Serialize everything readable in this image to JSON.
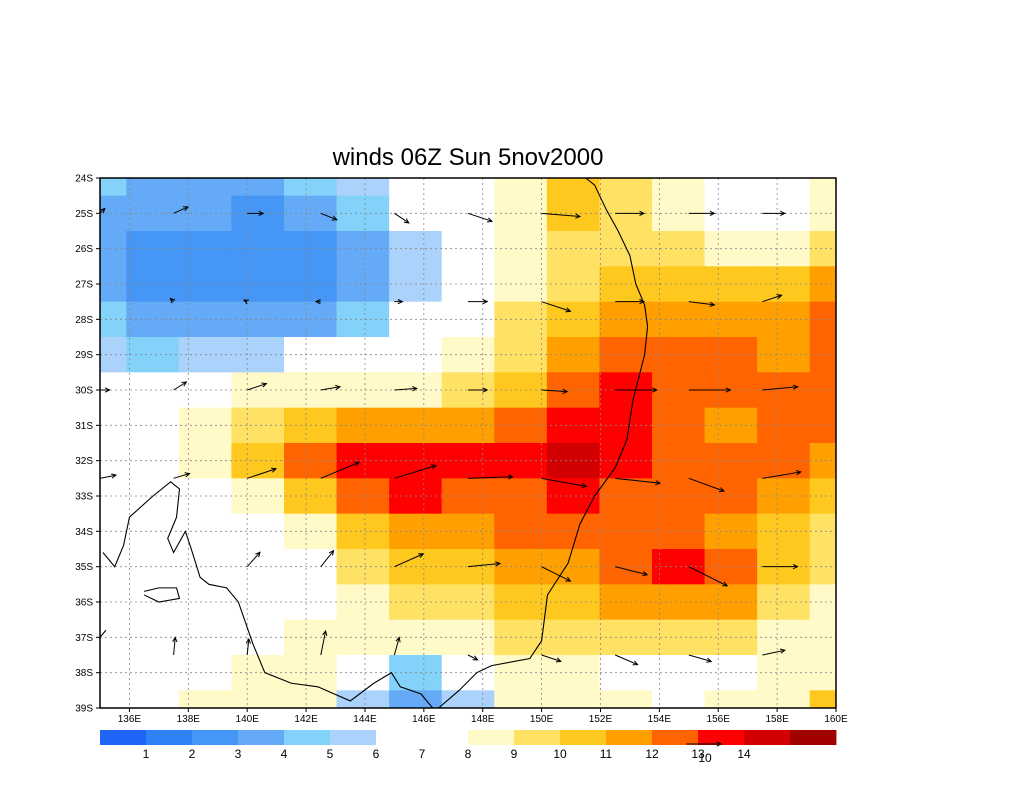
{
  "title": "winds 06Z Sun 5nov2000",
  "map": {
    "lon_range": [
      135,
      160
    ],
    "lat_range": [
      -39,
      -24
    ],
    "grid": true,
    "lon_ticks": [
      {
        "value": 136,
        "label": "136E"
      },
      {
        "value": 138,
        "label": "138E"
      },
      {
        "value": 140,
        "label": "140E"
      },
      {
        "value": 142,
        "label": "142E"
      },
      {
        "value": 144,
        "label": "144E"
      },
      {
        "value": 146,
        "label": "146E"
      },
      {
        "value": 148,
        "label": "148E"
      },
      {
        "value": 150,
        "label": "150E"
      },
      {
        "value": 152,
        "label": "152E"
      },
      {
        "value": 154,
        "label": "154E"
      },
      {
        "value": 156,
        "label": "156E"
      },
      {
        "value": 158,
        "label": "158E"
      },
      {
        "value": 160,
        "label": "160E"
      }
    ],
    "lat_ticks": [
      {
        "value": -24,
        "label": "24S"
      },
      {
        "value": -25,
        "label": "25S"
      },
      {
        "value": -26,
        "label": "26S"
      },
      {
        "value": -27,
        "label": "27S"
      },
      {
        "value": -28,
        "label": "28S"
      },
      {
        "value": -29,
        "label": "29S"
      },
      {
        "value": -30,
        "label": "30S"
      },
      {
        "value": -31,
        "label": "31S"
      },
      {
        "value": -32,
        "label": "32S"
      },
      {
        "value": -33,
        "label": "33S"
      },
      {
        "value": -34,
        "label": "34S"
      },
      {
        "value": -35,
        "label": "35S"
      },
      {
        "value": -36,
        "label": "36S"
      },
      {
        "value": -37,
        "label": "37S"
      },
      {
        "value": -38,
        "label": "38S"
      },
      {
        "value": -39,
        "label": "39S"
      }
    ]
  },
  "legend": {
    "colors": [
      "#1f64f5",
      "#2d82f5",
      "#4696f5",
      "#64aaf7",
      "#82d2fa",
      "#aad2fa",
      "#ffffff",
      "#ffffff",
      "#fffac8",
      "#ffe164",
      "#ffc81e",
      "#ffa000",
      "#ff6400",
      "#ff0000",
      "#d20000",
      "#a00000"
    ],
    "labels": [
      "1",
      "2",
      "3",
      "4",
      "5",
      "6",
      "7",
      "8",
      "9",
      "10",
      "11",
      "12",
      "13",
      "14"
    ],
    "reference_vector_label": "10"
  },
  "speed_field": [
    [
      4,
      3,
      3,
      3,
      4,
      5,
      7,
      7,
      8,
      10,
      9,
      8,
      7,
      6,
      8
    ],
    [
      3,
      3,
      3,
      2,
      3,
      4,
      6,
      7,
      8,
      10,
      9,
      8,
      7,
      7,
      8
    ],
    [
      3,
      2,
      2,
      2,
      2,
      3,
      5,
      7,
      8,
      9,
      9,
      9,
      8,
      8,
      9
    ],
    [
      3,
      2,
      2,
      2,
      2,
      3,
      5,
      7,
      8,
      9,
      10,
      10,
      10,
      10,
      11
    ],
    [
      4,
      3,
      3,
      3,
      3,
      4,
      6,
      7,
      9,
      10,
      11,
      11,
      11,
      11,
      12
    ],
    [
      5,
      4,
      5,
      5,
      6,
      7,
      7,
      8,
      9,
      11,
      12,
      12,
      12,
      11,
      12
    ],
    [
      6,
      7,
      7,
      8,
      8,
      8,
      8,
      9,
      10,
      12,
      13,
      12,
      12,
      12,
      12
    ],
    [
      7,
      7,
      8,
      9,
      10,
      11,
      11,
      11,
      12,
      13,
      13,
      12,
      11,
      12,
      12
    ],
    [
      7,
      7,
      8,
      10,
      12,
      13,
      13,
      13,
      13,
      14,
      13,
      12,
      12,
      12,
      11
    ],
    [
      7,
      7,
      7,
      8,
      10,
      12,
      13,
      12,
      12,
      13,
      12,
      12,
      12,
      11,
      10
    ],
    [
      7,
      7,
      7,
      7,
      8,
      10,
      11,
      11,
      12,
      12,
      12,
      12,
      11,
      10,
      9
    ],
    [
      7,
      7,
      7,
      7,
      7,
      9,
      10,
      10,
      11,
      11,
      12,
      13,
      12,
      10,
      9
    ],
    [
      7,
      7,
      7,
      7,
      7,
      8,
      9,
      9,
      10,
      10,
      11,
      11,
      11,
      9,
      8
    ],
    [
      7,
      7,
      7,
      7,
      8,
      8,
      8,
      8,
      9,
      9,
      9,
      9,
      9,
      8,
      8
    ],
    [
      7,
      7,
      7,
      8,
      8,
      7,
      4,
      6,
      8,
      8,
      7,
      6,
      7,
      8,
      8
    ],
    [
      7,
      7,
      8,
      8,
      8,
      5,
      3,
      5,
      8,
      8,
      8,
      7,
      8,
      8,
      10
    ]
  ],
  "wind_vectors": [
    {
      "lon": 135.0,
      "lat": -25.0,
      "u": 0.3,
      "v": 0.3
    },
    {
      "lon": 137.5,
      "lat": -25.0,
      "u": 0.9,
      "v": 0.4
    },
    {
      "lon": 140.0,
      "lat": -25.0,
      "u": 1.0,
      "v": 0.0
    },
    {
      "lon": 142.5,
      "lat": -25.0,
      "u": 1.0,
      "v": -0.4
    },
    {
      "lon": 145.0,
      "lat": -25.0,
      "u": 0.9,
      "v": -0.6
    },
    {
      "lon": 147.5,
      "lat": -25.0,
      "u": 1.5,
      "v": -0.5
    },
    {
      "lon": 150.0,
      "lat": -25.0,
      "u": 2.4,
      "v": -0.2
    },
    {
      "lon": 152.5,
      "lat": -25.0,
      "u": 1.8,
      "v": 0.0
    },
    {
      "lon": 155.0,
      "lat": -25.0,
      "u": 1.6,
      "v": 0.0
    },
    {
      "lon": 157.5,
      "lat": -25.0,
      "u": 1.4,
      "v": 0.0
    },
    {
      "lon": 137.5,
      "lat": -27.5,
      "u": -0.2,
      "v": 0.2
    },
    {
      "lon": 140.0,
      "lat": -27.5,
      "u": -0.2,
      "v": 0.1
    },
    {
      "lon": 142.5,
      "lat": -27.5,
      "u": -0.3,
      "v": 0.0
    },
    {
      "lon": 145.0,
      "lat": -27.5,
      "u": 0.5,
      "v": 0.0
    },
    {
      "lon": 147.5,
      "lat": -27.5,
      "u": 1.2,
      "v": 0.0
    },
    {
      "lon": 150.0,
      "lat": -27.5,
      "u": 1.8,
      "v": -0.6
    },
    {
      "lon": 152.5,
      "lat": -27.5,
      "u": 1.8,
      "v": 0.0
    },
    {
      "lon": 155.0,
      "lat": -27.5,
      "u": 1.6,
      "v": -0.2
    },
    {
      "lon": 157.5,
      "lat": -27.5,
      "u": 1.2,
      "v": 0.4
    },
    {
      "lon": 135.0,
      "lat": -30.0,
      "u": 0.6,
      "v": 0.0
    },
    {
      "lon": 137.5,
      "lat": -30.0,
      "u": 0.8,
      "v": 0.5
    },
    {
      "lon": 140.0,
      "lat": -30.0,
      "u": 1.2,
      "v": 0.4
    },
    {
      "lon": 142.5,
      "lat": -30.0,
      "u": 1.2,
      "v": 0.2
    },
    {
      "lon": 145.0,
      "lat": -30.0,
      "u": 1.4,
      "v": 0.1
    },
    {
      "lon": 147.5,
      "lat": -30.0,
      "u": 1.2,
      "v": 0.0
    },
    {
      "lon": 150.0,
      "lat": -30.0,
      "u": 1.6,
      "v": -0.1
    },
    {
      "lon": 152.5,
      "lat": -30.0,
      "u": 2.6,
      "v": 0.0
    },
    {
      "lon": 155.0,
      "lat": -30.0,
      "u": 2.6,
      "v": 0.0
    },
    {
      "lon": 157.5,
      "lat": -30.0,
      "u": 2.2,
      "v": 0.2
    },
    {
      "lon": 135.0,
      "lat": -32.5,
      "u": 1.0,
      "v": 0.2
    },
    {
      "lon": 137.5,
      "lat": -32.5,
      "u": 1.0,
      "v": 0.3
    },
    {
      "lon": 140.0,
      "lat": -32.5,
      "u": 1.8,
      "v": 0.6
    },
    {
      "lon": 142.5,
      "lat": -32.5,
      "u": 2.4,
      "v": 1.0
    },
    {
      "lon": 145.0,
      "lat": -32.5,
      "u": 2.6,
      "v": 0.8
    },
    {
      "lon": 147.5,
      "lat": -32.5,
      "u": 2.8,
      "v": 0.1
    },
    {
      "lon": 150.0,
      "lat": -32.5,
      "u": 2.8,
      "v": -0.5
    },
    {
      "lon": 152.5,
      "lat": -32.5,
      "u": 2.8,
      "v": -0.3
    },
    {
      "lon": 155.0,
      "lat": -32.5,
      "u": 2.2,
      "v": -0.8
    },
    {
      "lon": 157.5,
      "lat": -32.5,
      "u": 2.4,
      "v": 0.4
    },
    {
      "lon": 140.0,
      "lat": -35.0,
      "u": 0.8,
      "v": 0.9
    },
    {
      "lon": 142.5,
      "lat": -35.0,
      "u": 0.8,
      "v": 1.0
    },
    {
      "lon": 145.0,
      "lat": -35.0,
      "u": 1.8,
      "v": 0.8
    },
    {
      "lon": 147.5,
      "lat": -35.0,
      "u": 2.0,
      "v": 0.2
    },
    {
      "lon": 150.0,
      "lat": -35.0,
      "u": 1.8,
      "v": -0.9
    },
    {
      "lon": 152.5,
      "lat": -35.0,
      "u": 2.0,
      "v": -0.5
    },
    {
      "lon": 155.0,
      "lat": -35.0,
      "u": 2.4,
      "v": -1.2
    },
    {
      "lon": 157.5,
      "lat": -35.0,
      "u": 2.2,
      "v": 0.0
    },
    {
      "lon": 137.5,
      "lat": -37.5,
      "u": 0.1,
      "v": 1.1
    },
    {
      "lon": 140.0,
      "lat": -37.5,
      "u": 0.1,
      "v": 1.0
    },
    {
      "lon": 142.5,
      "lat": -37.5,
      "u": 0.3,
      "v": 1.5
    },
    {
      "lon": 145.0,
      "lat": -37.5,
      "u": 0.3,
      "v": 1.1
    },
    {
      "lon": 147.5,
      "lat": -37.5,
      "u": 0.6,
      "v": -0.3
    },
    {
      "lon": 150.0,
      "lat": -37.5,
      "u": 1.2,
      "v": -0.4
    },
    {
      "lon": 152.5,
      "lat": -37.5,
      "u": 1.4,
      "v": -0.6
    },
    {
      "lon": 155.0,
      "lat": -37.5,
      "u": 1.4,
      "v": -0.4
    },
    {
      "lon": 157.5,
      "lat": -37.5,
      "u": 1.4,
      "v": 0.3
    }
  ],
  "coastlines": [
    [
      [
        135.1,
        -34.6
      ],
      [
        135.5,
        -35.0
      ],
      [
        135.8,
        -34.4
      ],
      [
        136.0,
        -33.6
      ],
      [
        136.8,
        -33.0
      ],
      [
        137.4,
        -32.6
      ],
      [
        137.7,
        -32.8
      ],
      [
        137.6,
        -33.6
      ],
      [
        137.3,
        -34.2
      ],
      [
        137.5,
        -34.6
      ],
      [
        137.9,
        -34.0
      ],
      [
        138.1,
        -34.5
      ],
      [
        138.4,
        -35.3
      ],
      [
        138.7,
        -35.5
      ],
      [
        139.3,
        -35.6
      ],
      [
        139.7,
        -36.0
      ],
      [
        140.2,
        -37.2
      ],
      [
        140.6,
        -38.0
      ],
      [
        141.5,
        -38.3
      ],
      [
        142.4,
        -38.4
      ],
      [
        143.5,
        -38.8
      ],
      [
        144.3,
        -38.3
      ],
      [
        144.9,
        -38.0
      ],
      [
        145.2,
        -38.4
      ],
      [
        145.9,
        -38.6
      ],
      [
        146.3,
        -39.0
      ],
      [
        146.5,
        -39.0
      ],
      [
        147.2,
        -38.5
      ],
      [
        147.8,
        -38.0
      ],
      [
        148.3,
        -37.8
      ],
      [
        149.6,
        -37.6
      ],
      [
        150.0,
        -37.1
      ],
      [
        150.2,
        -35.8
      ],
      [
        150.9,
        -34.9
      ],
      [
        151.3,
        -33.8
      ],
      [
        151.8,
        -33.0
      ],
      [
        152.5,
        -32.2
      ],
      [
        152.9,
        -31.4
      ],
      [
        153.1,
        -30.3
      ],
      [
        153.5,
        -29.0
      ],
      [
        153.6,
        -28.2
      ],
      [
        153.5,
        -27.6
      ],
      [
        153.2,
        -27.0
      ],
      [
        153.0,
        -26.2
      ],
      [
        152.6,
        -25.5
      ],
      [
        152.2,
        -24.9
      ],
      [
        151.8,
        -24.2
      ],
      [
        151.5,
        -24.0
      ]
    ],
    [
      [
        136.5,
        -35.7
      ],
      [
        137.0,
        -35.6
      ],
      [
        137.6,
        -35.6
      ],
      [
        137.7,
        -35.9
      ],
      [
        137.0,
        -36.0
      ],
      [
        136.5,
        -35.8
      ]
    ],
    [
      [
        135.0,
        -37.0
      ],
      [
        135.2,
        -36.8
      ]
    ]
  ]
}
